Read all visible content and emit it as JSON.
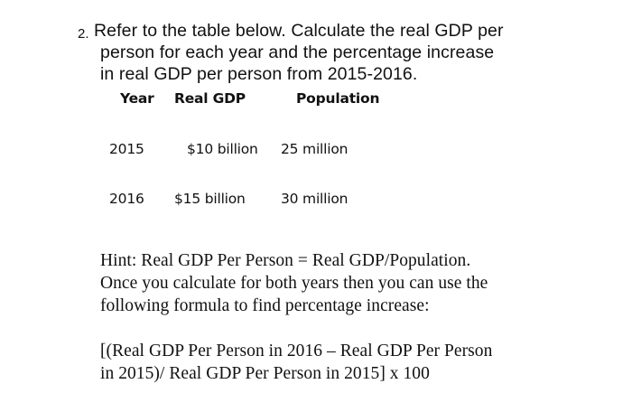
{
  "question": {
    "number": "2.",
    "lines": [
      "Refer to the table below. Calculate the real GDP per",
      "person for each year and the percentage increase",
      "in real GDP per person from 2015-2016."
    ]
  },
  "table": {
    "headers": [
      "Year",
      "Real GDP",
      "Population"
    ],
    "rows": [
      [
        "2015",
        "$10 billion",
        "25 million"
      ],
      [
        "2016",
        "$15 billion",
        "30 million"
      ]
    ]
  },
  "hint": {
    "lines": [
      "Hint: Real GDP Per Person = Real GDP/Population.",
      "Once you calculate for both years then you can use the",
      "following formula to find percentage increase:"
    ],
    "formula_lines": [
      "[(Real GDP Per Person in 2016 – Real GDP Per Person",
      "in 2015)/ Real GDP Per Person in 2015] x 100"
    ]
  }
}
